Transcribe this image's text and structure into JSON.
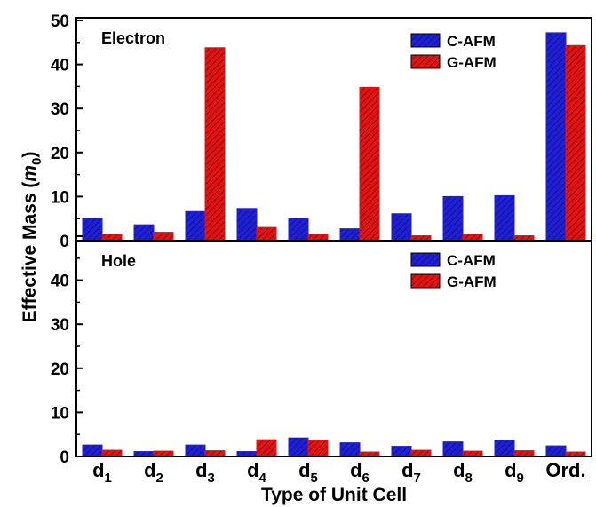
{
  "chart_data": {
    "type": "bar",
    "categories": [
      {
        "base": "d",
        "sub": "1"
      },
      {
        "base": "d",
        "sub": "2"
      },
      {
        "base": "d",
        "sub": "3"
      },
      {
        "base": "d",
        "sub": "4"
      },
      {
        "base": "d",
        "sub": "5"
      },
      {
        "base": "d",
        "sub": "6"
      },
      {
        "base": "d",
        "sub": "7"
      },
      {
        "base": "d",
        "sub": "8"
      },
      {
        "base": "d",
        "sub": "9"
      },
      {
        "base": "Ord.",
        "sub": ""
      }
    ],
    "xlabel": "Type of Unit Cell",
    "ylabel": {
      "prefix": "Effective Mass (",
      "var": "m",
      "sub": "0",
      "suffix": ")"
    },
    "panels": [
      {
        "label": "Electron",
        "ylim": [
          0,
          50
        ],
        "yticks": [
          "0",
          "10",
          "20",
          "30",
          "40",
          "50"
        ],
        "series": [
          {
            "name": "C-AFM",
            "color": "#1f1fd6",
            "values": [
              5.0,
              3.6,
              6.6,
              7.3,
              5.0,
              2.7,
              6.1,
              10.0,
              10.2,
              47.2
            ]
          },
          {
            "name": "G-AFM",
            "color": "#e01414",
            "values": [
              1.5,
              1.9,
              43.8,
              3.0,
              1.4,
              34.8,
              1.1,
              1.5,
              1.1,
              44.3
            ]
          }
        ]
      },
      {
        "label": "Hole",
        "ylim": [
          0,
          50
        ],
        "yticks": [
          "0",
          "10",
          "20",
          "30",
          "40",
          ""
        ],
        "series": [
          {
            "name": "C-AFM",
            "color": "#1f1fd6",
            "values": [
              2.6,
              1.1,
              2.6,
              1.1,
              4.2,
              3.1,
              2.3,
              3.3,
              3.7,
              2.4
            ]
          },
          {
            "name": "G-AFM",
            "color": "#e01414",
            "values": [
              1.4,
              1.2,
              1.3,
              3.8,
              3.6,
              1.0,
              1.4,
              1.2,
              1.3,
              1.0
            ]
          }
        ]
      }
    ],
    "legend_position": "top-right",
    "grid": false
  }
}
